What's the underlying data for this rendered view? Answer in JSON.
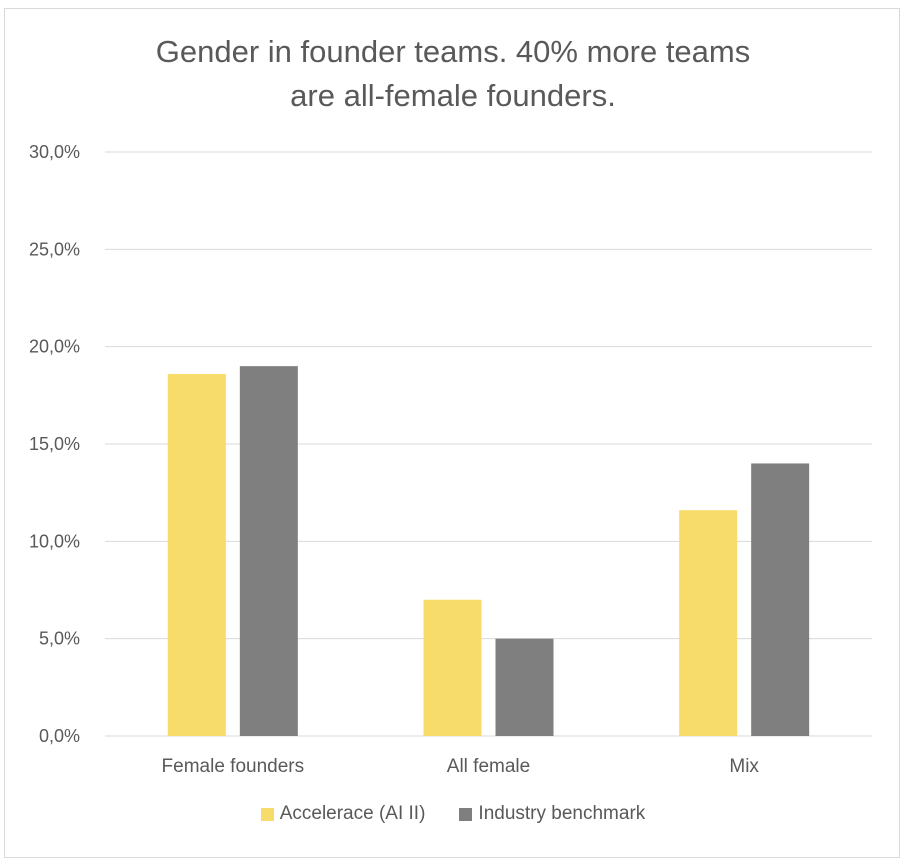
{
  "chart_data": {
    "type": "bar",
    "title_lines": [
      "Gender in founder teams. 40% more teams",
      "are all-female founders."
    ],
    "categories": [
      "Female founders",
      "All female",
      "Mix"
    ],
    "series": [
      {
        "name": "Accelerace (AI II)",
        "color": "#f8dc6b",
        "values": [
          18.6,
          7.0,
          11.6
        ]
      },
      {
        "name": "Industry benchmark",
        "color": "#7f7f7f",
        "values": [
          19.0,
          5.0,
          14.0
        ]
      }
    ],
    "ylim": [
      0,
      30
    ],
    "yticks": [
      0,
      5,
      10,
      15,
      20,
      25,
      30
    ],
    "ytick_labels": [
      "0,0%",
      "5,0%",
      "10,0%",
      "15,0%",
      "20,0%",
      "25,0%",
      "30,0%"
    ],
    "xlabel": "",
    "ylabel": "",
    "grid": true,
    "legend_position": "bottom"
  }
}
